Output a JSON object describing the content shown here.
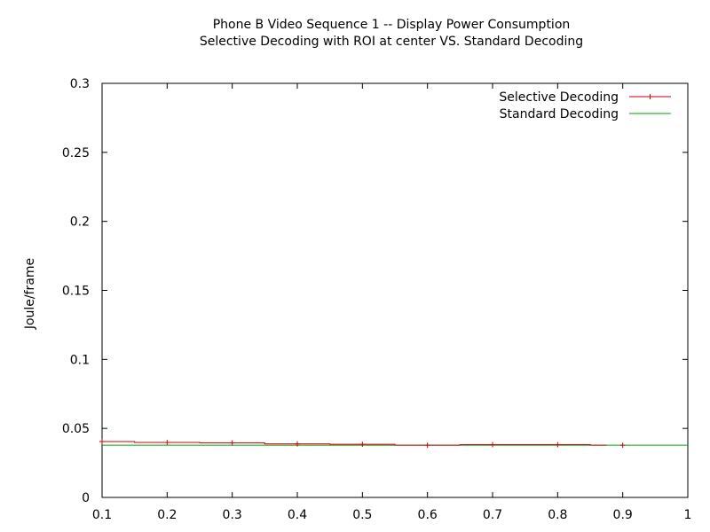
{
  "chart_data": {
    "type": "line",
    "title_line1": "Phone B Video Sequence 1 -- Display Power Consumption",
    "title_line2": "Selective Decoding with ROI at center VS. Standard Decoding",
    "xlabel": "",
    "ylabel": "Joule/frame",
    "xlim": [
      0.1,
      1.0
    ],
    "ylim": [
      0,
      0.3
    ],
    "x_ticks": [
      0.1,
      0.2,
      0.3,
      0.4,
      0.5,
      0.6,
      0.7,
      0.8,
      0.9,
      1.0
    ],
    "x_tick_labels": [
      "0.1",
      "0.2",
      "0.3",
      "0.4",
      "0.5",
      "0.6",
      "0.7",
      "0.8",
      "0.9",
      "1"
    ],
    "y_ticks": [
      0,
      0.05,
      0.1,
      0.15,
      0.2,
      0.25,
      0.3
    ],
    "y_tick_labels": [
      "0",
      "0.05",
      "0.1",
      "0.15",
      "0.2",
      "0.25",
      "0.3"
    ],
    "grid": false,
    "legend_position": "top-right",
    "series": [
      {
        "name": "Selective Decoding",
        "color": "#cc0000",
        "style": "steps-with-points",
        "x": [
          0.1,
          0.2,
          0.3,
          0.4,
          0.5,
          0.6,
          0.7,
          0.8,
          0.9
        ],
        "y": [
          0.0405,
          0.0398,
          0.0395,
          0.0388,
          0.0385,
          0.0378,
          0.0382,
          0.0382,
          0.0378
        ]
      },
      {
        "name": "Standard Decoding",
        "color": "#00a000",
        "style": "line",
        "x": [
          0.1,
          1.0
        ],
        "y": [
          0.0378,
          0.0378
        ]
      }
    ]
  }
}
